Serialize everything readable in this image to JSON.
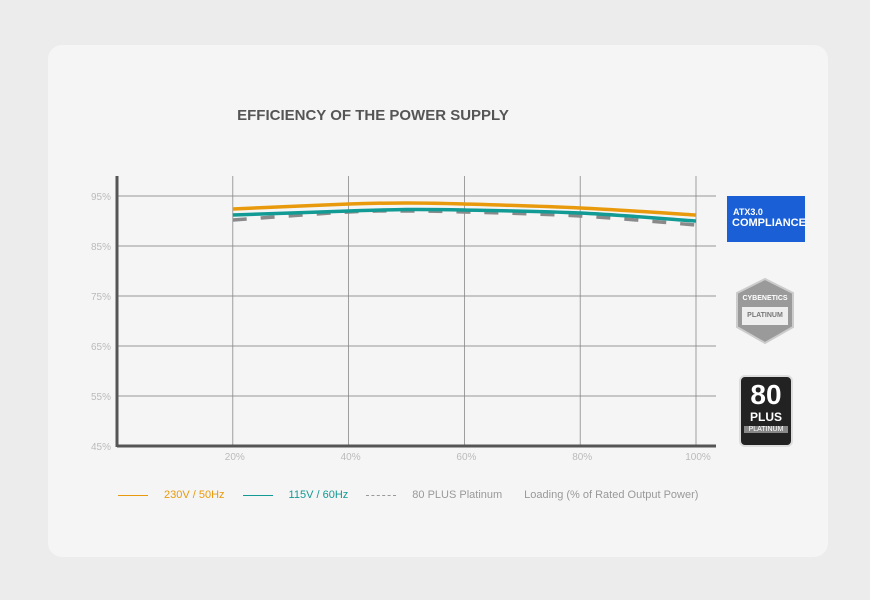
{
  "chart_data": {
    "type": "line",
    "title": "EFFICIENCY OF THE POWER SUPPLY",
    "xlabel": "Loading (% of Rated Output Power)",
    "ylabel": "",
    "xlim": [
      0,
      100
    ],
    "ylim": [
      45,
      100
    ],
    "x_ticks": [
      "20%",
      "40%",
      "60%",
      "80%",
      "100%"
    ],
    "y_ticks": [
      "95%",
      "85%",
      "75%",
      "65%",
      "55%",
      "45%"
    ],
    "grid": true,
    "legend_position": "bottom",
    "x": [
      20,
      40,
      50,
      60,
      80,
      100
    ],
    "series": [
      {
        "name": "230V / 50Hz",
        "color": "#e89a0c",
        "style": "solid",
        "values": [
          92.4,
          93.4,
          93.6,
          93.4,
          92.6,
          91.2
        ]
      },
      {
        "name": "115V / 60Hz",
        "color": "#129a94",
        "style": "solid",
        "values": [
          91.2,
          92.0,
          92.3,
          92.2,
          91.6,
          90.0
        ]
      },
      {
        "name": "80 PLUS Platinum",
        "color": "#8a8a8a",
        "style": "dashed",
        "values": [
          90.2,
          91.8,
          92.0,
          91.8,
          91.0,
          89.2
        ]
      }
    ]
  },
  "badges": {
    "atx": {
      "line1": "ATX3.0",
      "line2": "COMPLIANCE",
      "color": "#1a5fd6"
    },
    "cybenetics": {
      "line1": "CYBENETICS",
      "line2": "PLATINUM"
    },
    "plus": {
      "line1": "80",
      "line2": "PLUS",
      "line3": "PLATINUM"
    }
  }
}
